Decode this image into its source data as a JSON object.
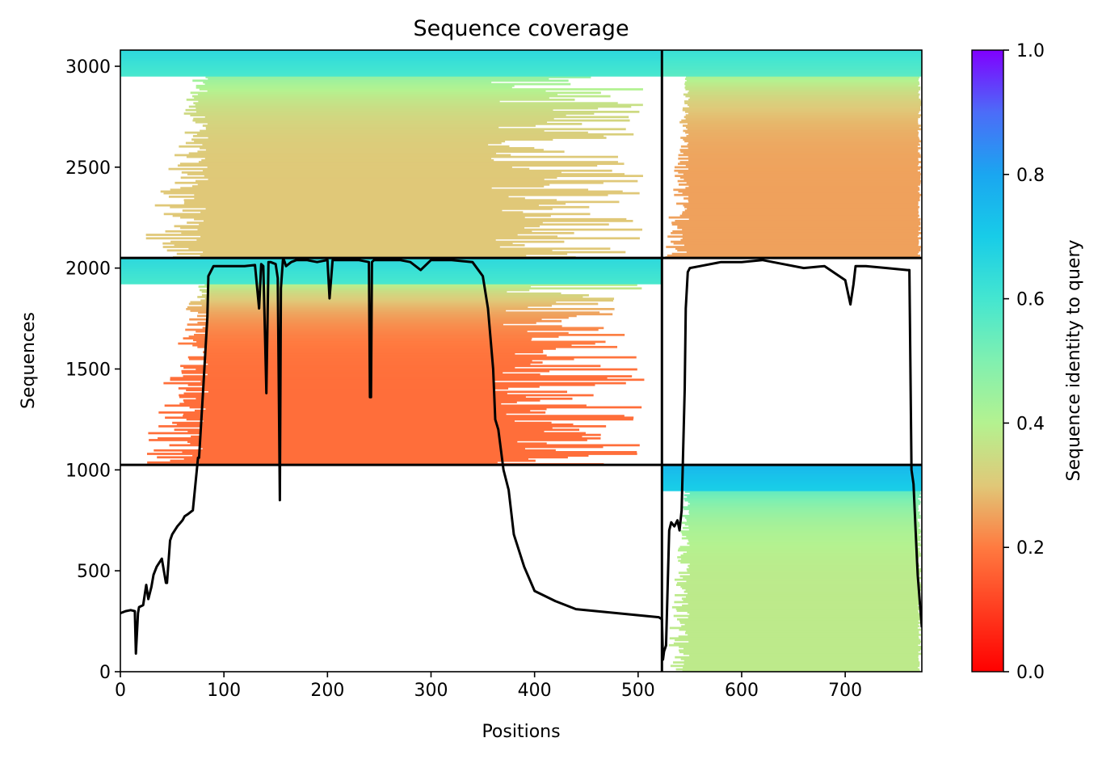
{
  "chart_data": {
    "type": "heatmap",
    "title": "Sequence coverage",
    "xlabel": "Positions",
    "ylabel": "Sequences",
    "xlim": [
      0,
      774
    ],
    "ylim": [
      0,
      3080
    ],
    "x_ticks": [
      0,
      100,
      200,
      300,
      400,
      500,
      600,
      700
    ],
    "y_ticks": [
      0,
      500,
      1000,
      1500,
      2000,
      2500,
      3000
    ],
    "grid": false,
    "colormap": "rainbow_r",
    "colorbar": {
      "label": "Sequence identity to query",
      "range": [
        0.0,
        1.0
      ],
      "ticks": [
        "0.0",
        "0.2",
        "0.4",
        "0.6",
        "0.8",
        "1.0"
      ]
    },
    "chain_boundary_x": 523,
    "block_boundaries_y": [
      1025,
      2050
    ],
    "blocks": [
      {
        "x_range": [
          0,
          523
        ],
        "y_range": [
          2050,
          3080
        ],
        "full_start": 85,
        "full_end": 355,
        "identity_top": 0.65,
        "identity_bottom": 0.3
      },
      {
        "x_range": [
          0,
          523
        ],
        "y_range": [
          1025,
          2050
        ],
        "full_start": 85,
        "full_end": 360,
        "identity_top": 0.65,
        "identity_bottom": 0.18
      },
      {
        "x_range": [
          523,
          774
        ],
        "y_range": [
          2050,
          3080
        ],
        "full_start": 550,
        "full_end": 770,
        "identity_top": 0.62,
        "identity_bottom": 0.25
      },
      {
        "x_range": [
          523,
          774
        ],
        "y_range": [
          0,
          1025
        ],
        "full_start": 550,
        "full_end": 770,
        "identity_top": 0.75,
        "identity_bottom": 0.38
      }
    ],
    "coverage_line": {
      "name": "coverage",
      "x": [
        0,
        5,
        10,
        14,
        15,
        17,
        18,
        22,
        25,
        27,
        30,
        32,
        35,
        40,
        44,
        45,
        48,
        50,
        55,
        60,
        62,
        65,
        70,
        75,
        76,
        80,
        84,
        85,
        90,
        100,
        110,
        120,
        130,
        134,
        136,
        138,
        140,
        141,
        143,
        145,
        150,
        152,
        154,
        155,
        157,
        158,
        160,
        165,
        170,
        180,
        190,
        200,
        202,
        205,
        210,
        230,
        240,
        241,
        242,
        243,
        245,
        250,
        270,
        280,
        290,
        300,
        320,
        340,
        350,
        355,
        360,
        362,
        365,
        370,
        375,
        380,
        390,
        400,
        420,
        440,
        460,
        480,
        500,
        520,
        523,
        524,
        525,
        527,
        530,
        532,
        535,
        538,
        540,
        542,
        545,
        546,
        548,
        550,
        560,
        580,
        600,
        620,
        640,
        660,
        680,
        700,
        705,
        708,
        710,
        715,
        720,
        740,
        760,
        762,
        764,
        766,
        768,
        770,
        772,
        774
      ],
      "y": [
        290,
        300,
        305,
        300,
        90,
        290,
        320,
        330,
        430,
        360,
        420,
        480,
        520,
        560,
        440,
        440,
        650,
        680,
        720,
        750,
        770,
        780,
        800,
        1060,
        1060,
        1400,
        1760,
        1960,
        2010,
        2010,
        2010,
        2010,
        2015,
        1800,
        2020,
        2010,
        1600,
        1380,
        2030,
        2030,
        2020,
        1950,
        850,
        1900,
        2040,
        2040,
        2010,
        2030,
        2040,
        2040,
        2030,
        2040,
        1850,
        2040,
        2040,
        2040,
        2030,
        1360,
        1360,
        2030,
        2040,
        2040,
        2040,
        2030,
        1990,
        2040,
        2040,
        2030,
        1960,
        1800,
        1500,
        1250,
        1200,
        1000,
        900,
        680,
        520,
        400,
        350,
        310,
        300,
        290,
        280,
        270,
        260,
        60,
        100,
        130,
        700,
        740,
        720,
        750,
        700,
        800,
        1400,
        1800,
        1980,
        2000,
        2010,
        2030,
        2030,
        2040,
        2020,
        2000,
        2010,
        1940,
        1820,
        1920,
        2010,
        2010,
        2010,
        2000,
        1990,
        1990,
        1000,
        930,
        700,
        480,
        350,
        220
      ]
    }
  }
}
